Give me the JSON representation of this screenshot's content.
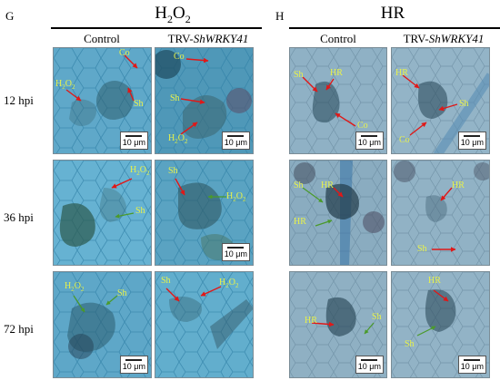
{
  "panels": [
    {
      "letter": "G",
      "title_main": "H",
      "title_sub1": "2",
      "title_mid": "O",
      "title_sub2": "2"
    },
    {
      "letter": "H",
      "title_main": "HR"
    }
  ],
  "columns": {
    "control": "Control",
    "trv_prefix": "TRV-",
    "trv_gene": "ShWRKY41"
  },
  "rows": [
    "12 hpi",
    "36 hpi",
    "72 hpi"
  ],
  "scale_label": "10 μm",
  "annotations": {
    "g12c": {
      "co": "Co",
      "h2o2": "H",
      "h2o2_sub": "2",
      "h2o2_o": "O",
      "h2o2_sub2": "2",
      "sh": "Sh"
    },
    "g12t": {
      "co": "Co",
      "sh": "Sh",
      "h2o2": "H",
      "h2o2_sub": "2",
      "h2o2_o": "O",
      "h2o2_sub2": "2"
    },
    "g36c": {
      "h2o2": "H",
      "h2o2_sub": "2",
      "h2o2_o": "O",
      "h2o2_sub2": "2",
      "sh": "Sh"
    },
    "g36t": {
      "sh": "Sh",
      "h2o2": "H",
      "h2o2_sub": "2",
      "h2o2_o": "O",
      "h2o2_sub2": "2"
    },
    "g72c": {
      "h2o2": "H",
      "h2o2_sub": "2",
      "h2o2_o": "O",
      "h2o2_sub2": "2",
      "sh": "Sh"
    },
    "g72t": {
      "sh": "Sh",
      "h2o2": "H",
      "h2o2_sub": "2",
      "h2o2_o": "O",
      "h2o2_sub2": "2"
    },
    "h12c": {
      "sh": "Sh",
      "hr": "HR",
      "co": "Co"
    },
    "h12t": {
      "hr": "HR",
      "sh": "Sh",
      "co": "Co"
    },
    "h36c": {
      "sh": "Sh",
      "hr1": "HR",
      "hr2": "HR"
    },
    "h36t": {
      "hr": "HR",
      "sh": "Sh"
    },
    "h72c": {
      "hr": "HR",
      "sh": "Sh"
    },
    "h72t": {
      "hr": "HR",
      "sh": "Sh"
    }
  },
  "colors": {
    "tile_g": "#6fb3d0",
    "tile_h": "#8fb0c4",
    "arrow_red": "#e01818",
    "arrow_green": "#4a9a2a",
    "label_yellow": "#e8f24a"
  }
}
